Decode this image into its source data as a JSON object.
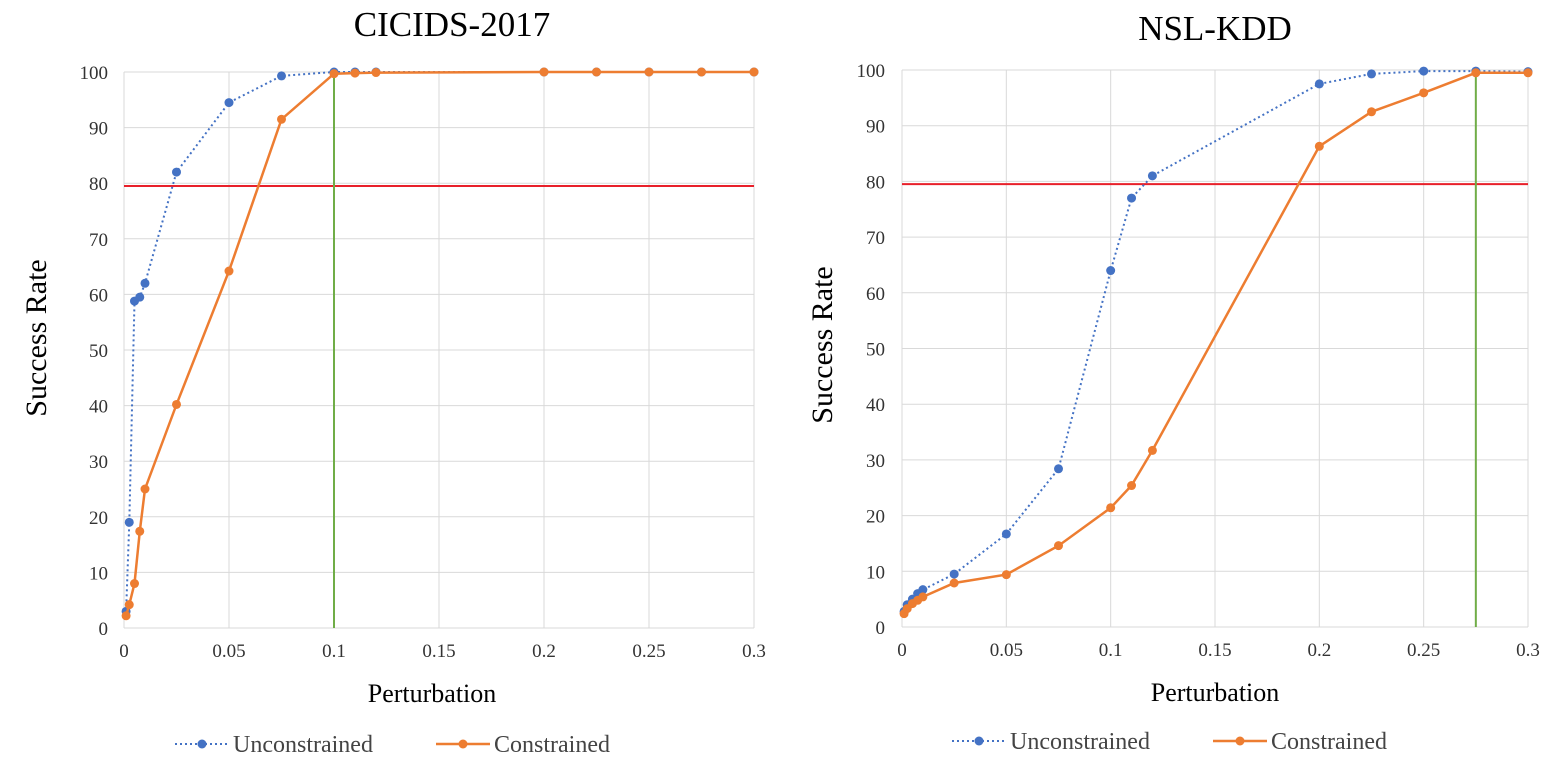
{
  "colors": {
    "unconstrained": "#4472c4",
    "constrained": "#ed7d31",
    "threshold": "#e8202a",
    "vertical_marker": "#70ad47",
    "grid": "#d9d9d9"
  },
  "chart_data": [
    {
      "type": "line",
      "title": "CICIDS-2017",
      "xlabel": "Perturbation",
      "ylabel": "Success Rate",
      "xlim": [
        0,
        0.3
      ],
      "ylim": [
        0,
        100
      ],
      "xticks": [
        "0",
        "0.05",
        "0.1",
        "0.15",
        "0.2",
        "0.25",
        "0.3"
      ],
      "yticks": [
        "0",
        "10",
        "20",
        "30",
        "40",
        "50",
        "60",
        "70",
        "80",
        "90",
        "100"
      ],
      "grid": true,
      "legend_position": "bottom",
      "threshold_y": 79.5,
      "marker_x": 0.1,
      "series": [
        {
          "name": "Unconstrained",
          "style": "dotted",
          "x": [
            0.001,
            0.0025,
            0.005,
            0.0075,
            0.01,
            0.025,
            0.05,
            0.075,
            0.1,
            0.11,
            0.12,
            0.2,
            0.225,
            0.25,
            0.275,
            0.3
          ],
          "y": [
            3,
            19,
            58.8,
            59.5,
            62,
            82,
            94.5,
            99.3,
            100,
            100,
            100,
            100,
            100,
            100,
            100,
            100
          ]
        },
        {
          "name": "Constrained",
          "style": "solid",
          "x": [
            0.001,
            0.0025,
            0.005,
            0.0075,
            0.01,
            0.025,
            0.05,
            0.075,
            0.1,
            0.11,
            0.12,
            0.2,
            0.225,
            0.25,
            0.275,
            0.3
          ],
          "y": [
            2.2,
            4.2,
            8,
            17.4,
            25,
            40.2,
            64.2,
            91.5,
            99.7,
            99.8,
            99.9,
            100,
            100,
            100,
            100,
            100
          ]
        }
      ]
    },
    {
      "type": "line",
      "title": "NSL-KDD",
      "xlabel": "Perturbation",
      "ylabel": "Success Rate",
      "xlim": [
        0,
        0.3
      ],
      "ylim": [
        0,
        100
      ],
      "xticks": [
        "0",
        "0.05",
        "0.1",
        "0.15",
        "0.2",
        "0.25",
        "0.3"
      ],
      "yticks": [
        "0",
        "10",
        "20",
        "30",
        "40",
        "50",
        "60",
        "70",
        "80",
        "90",
        "100"
      ],
      "grid": true,
      "legend_position": "bottom",
      "threshold_y": 79.5,
      "marker_x": 0.275,
      "series": [
        {
          "name": "Unconstrained",
          "style": "dotted",
          "x": [
            0.001,
            0.0025,
            0.005,
            0.0075,
            0.01,
            0.025,
            0.05,
            0.075,
            0.1,
            0.11,
            0.12,
            0.2,
            0.225,
            0.25,
            0.275,
            0.3
          ],
          "y": [
            2.8,
            4,
            5,
            6,
            6.7,
            9.5,
            16.7,
            28.4,
            64,
            77,
            81,
            97.5,
            99.3,
            99.8,
            99.8,
            99.7
          ]
        },
        {
          "name": "Constrained",
          "style": "solid",
          "x": [
            0.001,
            0.0025,
            0.005,
            0.0075,
            0.01,
            0.025,
            0.05,
            0.075,
            0.1,
            0.11,
            0.12,
            0.2,
            0.225,
            0.25,
            0.275,
            0.3
          ],
          "y": [
            2.4,
            3.3,
            4.2,
            4.8,
            5.4,
            7.9,
            9.4,
            14.6,
            21.4,
            25.4,
            31.7,
            86.3,
            92.5,
            95.9,
            99.5,
            99.5
          ]
        }
      ]
    }
  ]
}
